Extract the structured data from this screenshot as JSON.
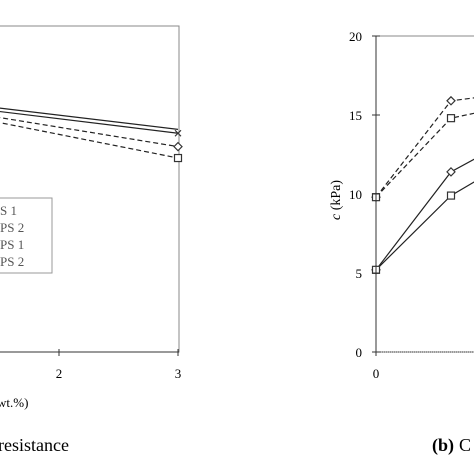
{
  "chart_data": [
    {
      "type": "line",
      "panel": "left",
      "caption": "resistance",
      "xlabel": "wt.%)",
      "x_ticks": [
        "2",
        "3"
      ],
      "xlim": [
        1,
        3
      ],
      "ylim": [
        0,
        1
      ],
      "grid": false,
      "legend": {
        "placement": "bottom-left",
        "entries": [
          "S 1",
          "PS 2",
          "PS 1",
          "PS 2"
        ]
      },
      "series": [
        {
          "marker": "none",
          "dash": "solid",
          "x": [
            1,
            3
          ],
          "y": [
            0.77,
            0.683
          ]
        },
        {
          "marker": "cross",
          "dash": "solid",
          "x": [
            1,
            3
          ],
          "y": [
            0.76,
            0.671
          ]
        },
        {
          "marker": "diamond",
          "dash": "dashed",
          "x": [
            1,
            3
          ],
          "y": [
            0.749,
            0.63
          ]
        },
        {
          "marker": "square",
          "dash": "dashed",
          "x": [
            1,
            3
          ],
          "y": [
            0.74,
            0.595
          ]
        }
      ]
    },
    {
      "type": "line",
      "panel": "right",
      "caption_label": "(b)",
      "caption_rest": "C",
      "ylabel_italic": "c",
      "ylabel_unit": " (kPa)",
      "y_ticks": [
        "0",
        "5",
        "10",
        "15",
        "20"
      ],
      "ylim": [
        0,
        20
      ],
      "x_ticks": [
        "0"
      ],
      "xlim": [
        0,
        3
      ],
      "grid": false,
      "series": [
        {
          "marker": "diamond",
          "dash": "dashed",
          "x": [
            0,
            1,
            1.5
          ],
          "y": [
            9.8,
            15.9,
            16.2
          ]
        },
        {
          "marker": "square",
          "dash": "dashed",
          "x": [
            0,
            1,
            1.5
          ],
          "y": [
            9.8,
            14.8,
            15.3
          ]
        },
        {
          "marker": "diamond",
          "dash": "solid",
          "x": [
            0,
            1,
            1.5
          ],
          "y": [
            5.2,
            11.4,
            12.7
          ]
        },
        {
          "marker": "square",
          "dash": "solid",
          "x": [
            0,
            1,
            1.5
          ],
          "y": [
            5.2,
            9.9,
            11.3
          ]
        }
      ]
    }
  ]
}
